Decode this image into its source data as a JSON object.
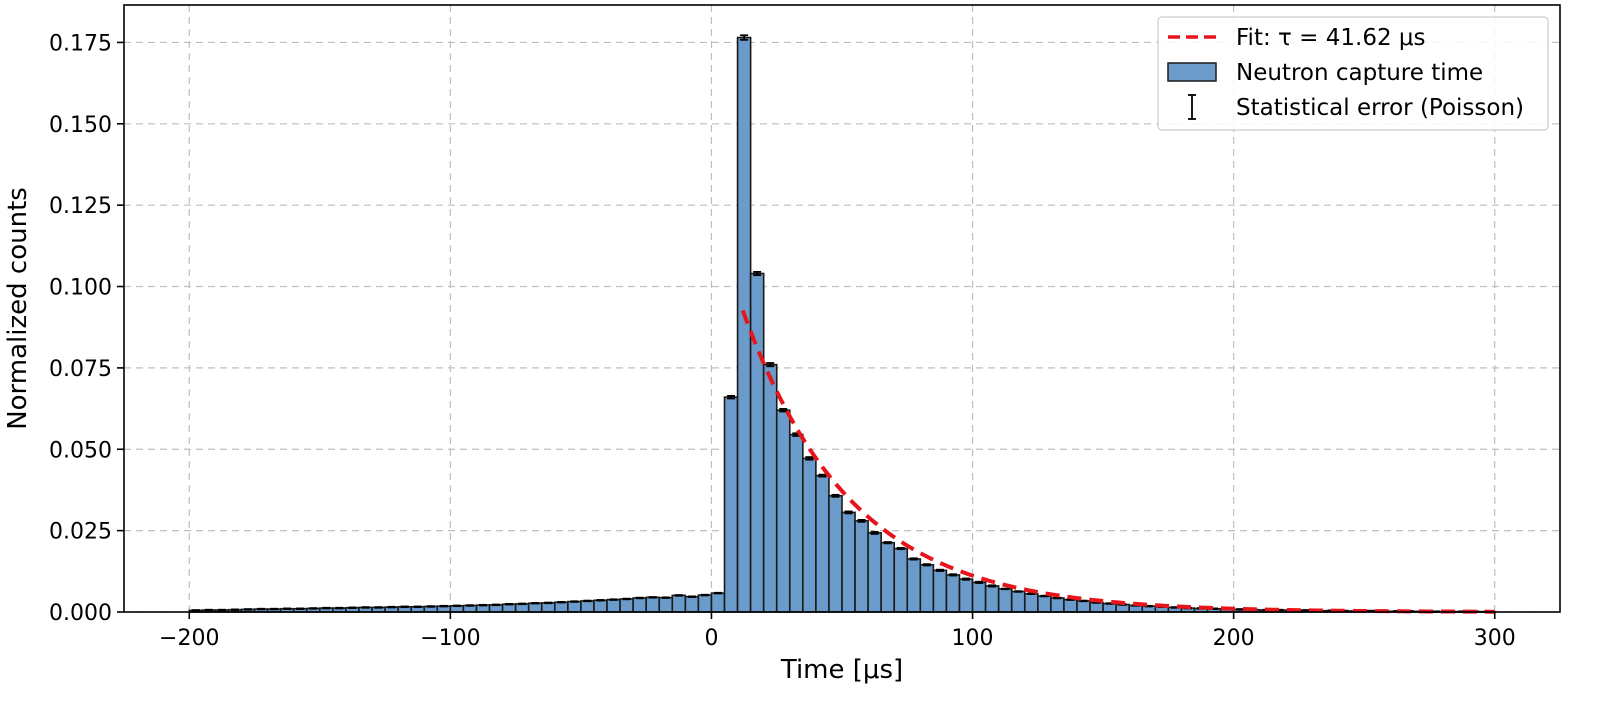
{
  "chart_data": {
    "type": "bar",
    "title": "",
    "xlabel": "Time [μs]",
    "ylabel": "Normalized counts",
    "xlim": [
      -225,
      325
    ],
    "ylim": [
      0,
      0.1865
    ],
    "x_ticks": [
      -200,
      -100,
      0,
      100,
      200,
      300
    ],
    "x_tick_labels": [
      "−200",
      "−100",
      "0",
      "100",
      "200",
      "300"
    ],
    "y_ticks": [
      0,
      0.025,
      0.05,
      0.075,
      0.1,
      0.125,
      0.15,
      0.175
    ],
    "y_tick_labels": [
      "0.000",
      "0.025",
      "0.050",
      "0.075",
      "0.100",
      "0.125",
      "0.150",
      "0.175"
    ],
    "grid": true,
    "legend_position": "top-right",
    "bin_width": 5,
    "bin_start": -200,
    "histogram": {
      "name": "Neutron capture time",
      "color": "#6b9bcb",
      "edge_color": "#1a1a1a",
      "values": [
        0.0005,
        0.0006,
        0.0006,
        0.0007,
        0.0008,
        0.0009,
        0.0009,
        0.001,
        0.001,
        0.0011,
        0.0012,
        0.0012,
        0.0013,
        0.0014,
        0.0014,
        0.0015,
        0.0016,
        0.0016,
        0.0017,
        0.0018,
        0.0019,
        0.002,
        0.0021,
        0.0022,
        0.0024,
        0.0025,
        0.0027,
        0.0028,
        0.003,
        0.0032,
        0.0034,
        0.0036,
        0.0038,
        0.004,
        0.0043,
        0.0045,
        0.0044,
        0.0051,
        0.0047,
        0.0052,
        0.0058,
        0.066,
        0.1765,
        0.104,
        0.076,
        0.062,
        0.0545,
        0.0472,
        0.0419,
        0.0357,
        0.0306,
        0.028,
        0.0243,
        0.0213,
        0.0195,
        0.0163,
        0.0145,
        0.0128,
        0.0114,
        0.0101,
        0.0091,
        0.008,
        0.0071,
        0.0063,
        0.0056,
        0.0049,
        0.0043,
        0.0038,
        0.0034,
        0.0029,
        0.0026,
        0.0023,
        0.002,
        0.0018,
        0.0016,
        0.0014,
        0.0012,
        0.0011,
        0.001,
        0.0009,
        0.0008,
        0.0007,
        0.0006,
        0.0006,
        0.0005,
        0.0005,
        0.0004,
        0.0004,
        0.0003,
        0.0003,
        0.0003,
        0.0002,
        0.0002,
        0.0002,
        0.0002,
        0.0001,
        0.0001,
        0.0001,
        0.0001,
        0.0001
      ]
    },
    "errorbars": {
      "name": "Statistical error (Poisson)",
      "color": "#000000",
      "values": [
        0.0001,
        0.0001,
        0.0001,
        0.0001,
        0.0001,
        0.0001,
        0.0001,
        0.0001,
        0.0001,
        0.0001,
        0.0001,
        0.0001,
        0.0001,
        0.0001,
        0.0001,
        0.0001,
        0.0001,
        0.0001,
        0.0001,
        0.0001,
        0.0001,
        0.0001,
        0.0001,
        0.0001,
        0.0001,
        0.0001,
        0.0001,
        0.0001,
        0.0001,
        0.0001,
        0.0001,
        0.0001,
        0.0001,
        0.0001,
        0.0001,
        0.0001,
        0.0001,
        0.0001,
        0.0001,
        0.0001,
        0.0001,
        0.0004,
        0.0007,
        0.0005,
        0.0005,
        0.0004,
        0.0004,
        0.0004,
        0.0003,
        0.0003,
        0.0003,
        0.0003,
        0.0003,
        0.0002,
        0.0002,
        0.0002,
        0.0002,
        0.0002,
        0.0002,
        0.0002,
        0.0002,
        0.0002,
        0.0001,
        0.0001,
        0.0001,
        0.0001,
        0.0001,
        0.0001,
        0.0001,
        0.0001,
        0.0001,
        0.0001,
        0.0001,
        0.0001,
        0.0001,
        0.0001,
        0.0001,
        0.0001,
        0.0001,
        0.0001,
        0.0001,
        0.0001,
        0.0001,
        0.0001,
        0.0001,
        0.0001,
        0.0001,
        0.0001,
        0.0001,
        0.0001,
        0.0001,
        0.0001,
        0.0001,
        0.0001,
        0.0001,
        0.0001,
        0.0001,
        0.0001,
        0.0001,
        0.0001
      ]
    },
    "fit": {
      "name": "Fit: τ = 41.62 μs",
      "tau": 41.62,
      "x_start": 12,
      "x_end": 300,
      "amplitude": 0.1236,
      "color": "#e8141c",
      "style": "dashed"
    },
    "legend": [
      {
        "label": "Fit: τ = 41.62 μs",
        "kind": "line"
      },
      {
        "label": "Neutron capture time",
        "kind": "patch"
      },
      {
        "label": "Statistical error (Poisson)",
        "kind": "errorbar"
      }
    ]
  }
}
